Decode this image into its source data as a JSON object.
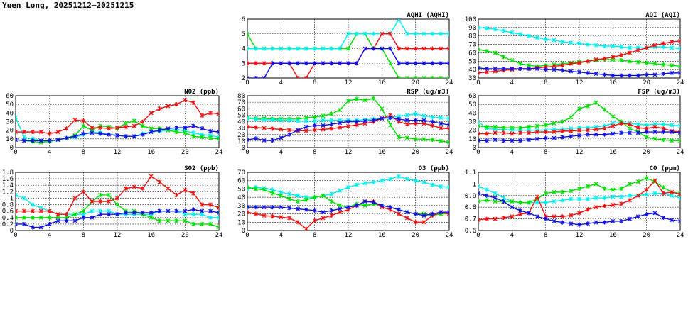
{
  "page": {
    "title": "Yuen Long, 20251212–20251215"
  },
  "colors": {
    "green": "#00dd00",
    "cyan": "#00eeee",
    "red": "#ee1111",
    "blue": "#1111dd"
  },
  "chart_data": [
    {
      "type": "line",
      "title": "AQHI (AQHI)",
      "xlim": [
        0,
        24
      ],
      "ylim": [
        2,
        6
      ],
      "xticks": [
        0,
        4,
        8,
        12,
        16,
        20,
        24
      ],
      "yticks": [
        2,
        3,
        4,
        5,
        6
      ],
      "grid": true,
      "series": [
        {
          "color": "green",
          "values": [
            5,
            4,
            4,
            4,
            4,
            4,
            4,
            4,
            4,
            4,
            4,
            4,
            4,
            5,
            5,
            4,
            4,
            3,
            2,
            2,
            2,
            2,
            2,
            2,
            2
          ]
        },
        {
          "color": "cyan",
          "values": [
            4,
            4,
            4,
            4,
            4,
            4,
            4,
            4,
            4,
            4,
            4,
            4,
            5,
            5,
            5,
            5,
            5,
            5,
            6,
            5,
            5,
            5,
            5,
            5,
            5
          ]
        },
        {
          "color": "red",
          "values": [
            3,
            3,
            3,
            3,
            3,
            3,
            2,
            2,
            3,
            3,
            3,
            3,
            3,
            3,
            4,
            4,
            5,
            5,
            4,
            4,
            4,
            4,
            4,
            4,
            4
          ]
        },
        {
          "color": "blue",
          "values": [
            2,
            2,
            2,
            3,
            3,
            3,
            3,
            3,
            3,
            3,
            3,
            3,
            3,
            3,
            4,
            4,
            4,
            4,
            3,
            3,
            3,
            3,
            3,
            3,
            3
          ]
        }
      ]
    },
    {
      "type": "line",
      "title": "AQI (AQI)",
      "xlim": [
        0,
        24
      ],
      "ylim": [
        30,
        100
      ],
      "xticks": [
        0,
        4,
        8,
        12,
        16,
        20,
        24
      ],
      "yticks": [
        30,
        40,
        50,
        60,
        70,
        80,
        90,
        100
      ],
      "grid": true,
      "series": [
        {
          "color": "cyan",
          "values": [
            90,
            89,
            88,
            86,
            84,
            82,
            80,
            78,
            76,
            75,
            73,
            72,
            71,
            70,
            69,
            68,
            68,
            67,
            66,
            66,
            66,
            67,
            67,
            66,
            65
          ]
        },
        {
          "color": "green",
          "values": [
            64,
            62,
            60,
            55,
            51,
            47,
            45,
            44,
            45,
            46,
            47,
            48,
            49,
            50,
            51,
            52,
            52,
            51,
            50,
            49,
            48,
            47,
            46,
            45,
            44
          ]
        },
        {
          "color": "red",
          "values": [
            36,
            37,
            38,
            39,
            40,
            41,
            41,
            42,
            43,
            44,
            45,
            47,
            48,
            50,
            52,
            53,
            55,
            57,
            60,
            63,
            66,
            69,
            71,
            73,
            74
          ]
        },
        {
          "color": "blue",
          "values": [
            42,
            41,
            41,
            41,
            41,
            41,
            41,
            41,
            40,
            40,
            39,
            38,
            37,
            36,
            35,
            34,
            33,
            33,
            33,
            33,
            34,
            34,
            35,
            36,
            36
          ]
        }
      ]
    },
    {
      "type": "line",
      "title": "NO2 (ppb)",
      "xlim": [
        0,
        24
      ],
      "ylim": [
        0,
        60
      ],
      "xticks": [
        0,
        4,
        8,
        12,
        16,
        20,
        24
      ],
      "yticks": [
        0,
        10,
        20,
        30,
        40,
        50,
        60
      ],
      "grid": true,
      "series": [
        {
          "color": "cyan",
          "values": [
            35,
            12,
            10,
            8,
            7,
            9,
            11,
            12,
            15,
            18,
            17,
            15,
            14,
            13,
            13,
            16,
            18,
            19,
            20,
            21,
            19,
            17,
            15,
            14,
            12
          ]
        },
        {
          "color": "green",
          "values": [
            9,
            8,
            7,
            6,
            7,
            9,
            11,
            14,
            25,
            20,
            25,
            24,
            22,
            28,
            31,
            25,
            22,
            22,
            20,
            18,
            17,
            13,
            12,
            11,
            10
          ]
        },
        {
          "color": "red",
          "values": [
            18,
            18,
            18,
            18,
            16,
            18,
            22,
            32,
            31,
            23,
            23,
            22,
            23,
            24,
            25,
            30,
            40,
            45,
            48,
            50,
            55,
            52,
            37,
            40,
            39
          ]
        },
        {
          "color": "blue",
          "values": [
            9,
            8,
            8,
            8,
            8,
            9,
            11,
            13,
            16,
            17,
            16,
            15,
            14,
            13,
            13,
            15,
            18,
            20,
            22,
            23,
            23,
            25,
            22,
            19,
            18
          ]
        }
      ]
    },
    {
      "type": "line",
      "title": "RSP (ug/m3)",
      "xlim": [
        0,
        24
      ],
      "ylim": [
        0,
        80
      ],
      "xticks": [
        0,
        4,
        8,
        12,
        16,
        20,
        24
      ],
      "yticks": [
        0,
        10,
        20,
        30,
        40,
        50,
        60,
        70,
        80
      ],
      "grid": true,
      "series": [
        {
          "color": "green",
          "values": [
            46,
            45,
            45,
            44,
            44,
            44,
            44,
            46,
            47,
            49,
            52,
            58,
            72,
            75,
            73,
            76,
            60,
            35,
            16,
            15,
            13,
            13,
            12,
            10,
            8
          ]
        },
        {
          "color": "cyan",
          "values": [
            45,
            44,
            43,
            43,
            42,
            42,
            41,
            41,
            41,
            42,
            42,
            42,
            42,
            42,
            43,
            44,
            45,
            47,
            48,
            50,
            52,
            49,
            47,
            46,
            45
          ]
        },
        {
          "color": "red",
          "values": [
            32,
            31,
            30,
            29,
            28,
            27,
            26,
            26,
            27,
            28,
            29,
            31,
            33,
            35,
            37,
            40,
            45,
            50,
            40,
            36,
            37,
            37,
            34,
            30,
            29
          ]
        },
        {
          "color": "blue",
          "values": [
            12,
            14,
            11,
            11,
            15,
            20,
            27,
            32,
            34,
            34,
            36,
            38,
            40,
            40,
            41,
            42,
            45,
            46,
            44,
            42,
            42,
            42,
            40,
            37,
            35
          ]
        }
      ]
    },
    {
      "type": "line",
      "title": "FSP (ug/m3)",
      "xlim": [
        0,
        24
      ],
      "ylim": [
        0,
        60
      ],
      "xticks": [
        0,
        4,
        8,
        12,
        16,
        20,
        24
      ],
      "yticks": [
        0,
        10,
        20,
        30,
        40,
        50,
        60
      ],
      "grid": true,
      "series": [
        {
          "color": "cyan",
          "values": [
            30,
            22,
            21,
            21,
            20,
            20,
            20,
            20,
            20,
            21,
            21,
            22,
            23,
            23,
            24,
            25,
            28,
            29,
            28,
            27,
            26,
            27,
            27,
            26,
            25
          ]
        },
        {
          "color": "green",
          "values": [
            25,
            24,
            24,
            23,
            23,
            23,
            24,
            25,
            26,
            28,
            30,
            35,
            45,
            48,
            52,
            44,
            36,
            30,
            22,
            18,
            12,
            10,
            9,
            8,
            8
          ]
        },
        {
          "color": "red",
          "values": [
            16,
            16,
            17,
            17,
            16,
            17,
            17,
            18,
            18,
            18,
            19,
            19,
            20,
            20,
            21,
            22,
            25,
            28,
            27,
            23,
            22,
            24,
            22,
            19,
            18
          ]
        },
        {
          "color": "blue",
          "values": [
            8,
            8,
            9,
            8,
            8,
            8,
            9,
            10,
            11,
            11,
            12,
            13,
            14,
            15,
            15,
            15,
            16,
            17,
            17,
            17,
            18,
            18,
            18,
            18,
            17
          ]
        }
      ]
    },
    {
      "type": "line",
      "title": "SO2 (ppb)",
      "xlim": [
        0,
        24
      ],
      "ylim": [
        0,
        1.8
      ],
      "xticks": [
        0,
        4,
        8,
        12,
        16,
        20,
        24
      ],
      "yticks": [
        0,
        0.2,
        0.4,
        0.6,
        0.8,
        1.0,
        1.2,
        1.4,
        1.6,
        1.8
      ],
      "grid": true,
      "series": [
        {
          "color": "cyan",
          "values": [
            1.1,
            1.0,
            0.8,
            0.7,
            0.6,
            0.5,
            0.5,
            0.5,
            0.5,
            0.6,
            0.6,
            0.6,
            0.5,
            0.5,
            0.5,
            0.5,
            0.5,
            0.6,
            0.6,
            0.6,
            0.5,
            0.5,
            0.5,
            0.4,
            0.4
          ]
        },
        {
          "color": "green",
          "values": [
            0.4,
            0.4,
            0.4,
            0.4,
            0.4,
            0.4,
            0.4,
            0.5,
            0.6,
            0.9,
            1.1,
            1.1,
            0.8,
            0.6,
            0.6,
            0.5,
            0.4,
            0.3,
            0.3,
            0.3,
            0.3,
            0.2,
            0.2,
            0.2,
            0.1
          ]
        },
        {
          "color": "red",
          "values": [
            0.6,
            0.6,
            0.6,
            0.6,
            0.6,
            0.5,
            0.5,
            1.0,
            1.2,
            0.9,
            0.9,
            0.9,
            1.0,
            1.3,
            1.35,
            1.3,
            1.68,
            1.5,
            1.3,
            1.1,
            1.25,
            1.15,
            0.8,
            0.8,
            0.7
          ]
        },
        {
          "color": "blue",
          "values": [
            0.2,
            0.2,
            0.1,
            0.1,
            0.2,
            0.3,
            0.3,
            0.3,
            0.4,
            0.4,
            0.5,
            0.5,
            0.5,
            0.55,
            0.55,
            0.55,
            0.55,
            0.6,
            0.6,
            0.6,
            0.6,
            0.65,
            0.6,
            0.6,
            0.55
          ]
        }
      ]
    },
    {
      "type": "line",
      "title": "O3 (ppb)",
      "xlim": [
        0,
        24
      ],
      "ylim": [
        0,
        70
      ],
      "xticks": [
        0,
        4,
        8,
        12,
        16,
        20,
        24
      ],
      "yticks": [
        0,
        10,
        20,
        30,
        40,
        50,
        60,
        70
      ],
      "grid": true,
      "series": [
        {
          "color": "cyan",
          "values": [
            50,
            52,
            51,
            49,
            46,
            44,
            42,
            40,
            40,
            42,
            44,
            48,
            52,
            55,
            57,
            58,
            60,
            62,
            65,
            62,
            60,
            58,
            55,
            53,
            52
          ]
        },
        {
          "color": "green",
          "values": [
            52,
            50,
            49,
            45,
            42,
            38,
            35,
            37,
            40,
            42,
            35,
            30,
            28,
            32,
            30,
            32,
            30,
            28,
            25,
            22,
            20,
            20,
            18,
            20,
            20
          ]
        },
        {
          "color": "red",
          "values": [
            22,
            20,
            18,
            17,
            16,
            15,
            10,
            2,
            12,
            15,
            18,
            22,
            25,
            30,
            35,
            35,
            28,
            25,
            20,
            15,
            10,
            10,
            18,
            22,
            20
          ]
        },
        {
          "color": "blue",
          "values": [
            28,
            28,
            28,
            28,
            28,
            27,
            26,
            25,
            24,
            22,
            24,
            26,
            28,
            30,
            35,
            34,
            30,
            28,
            25,
            22,
            20,
            18,
            20,
            22,
            22
          ]
        }
      ]
    },
    {
      "type": "line",
      "title": "CO (ppm)",
      "xlim": [
        0,
        24
      ],
      "ylim": [
        0.6,
        1.1
      ],
      "xticks": [
        0,
        4,
        8,
        12,
        16,
        20,
        24
      ],
      "yticks": [
        0.6,
        0.7,
        0.8,
        0.9,
        1.0,
        1.1
      ],
      "grid": true,
      "series": [
        {
          "color": "cyan",
          "values": [
            0.98,
            0.95,
            0.92,
            0.88,
            0.85,
            0.84,
            0.84,
            0.84,
            0.84,
            0.85,
            0.86,
            0.87,
            0.87,
            0.87,
            0.88,
            0.88,
            0.89,
            0.89,
            0.9,
            0.9,
            0.91,
            0.92,
            0.92,
            0.9,
            0.88
          ]
        },
        {
          "color": "green",
          "values": [
            0.85,
            0.86,
            0.85,
            0.85,
            0.85,
            0.84,
            0.84,
            0.87,
            0.92,
            0.93,
            0.93,
            0.94,
            0.96,
            0.98,
            1.0,
            0.96,
            0.95,
            0.96,
            1.0,
            1.02,
            1.05,
            1.02,
            0.97,
            0.93,
            0.92
          ]
        },
        {
          "color": "red",
          "values": [
            0.69,
            0.7,
            0.7,
            0.71,
            0.72,
            0.74,
            0.75,
            0.89,
            0.72,
            0.72,
            0.72,
            0.73,
            0.75,
            0.78,
            0.8,
            0.81,
            0.82,
            0.83,
            0.86,
            0.9,
            0.95,
            1.03,
            0.92,
            0.93,
            0.91
          ]
        },
        {
          "color": "blue",
          "values": [
            0.92,
            0.9,
            0.88,
            0.85,
            0.8,
            0.77,
            0.75,
            0.72,
            0.7,
            0.68,
            0.67,
            0.66,
            0.65,
            0.66,
            0.67,
            0.67,
            0.68,
            0.68,
            0.7,
            0.72,
            0.74,
            0.75,
            0.71,
            0.69,
            0.68
          ]
        }
      ]
    }
  ]
}
